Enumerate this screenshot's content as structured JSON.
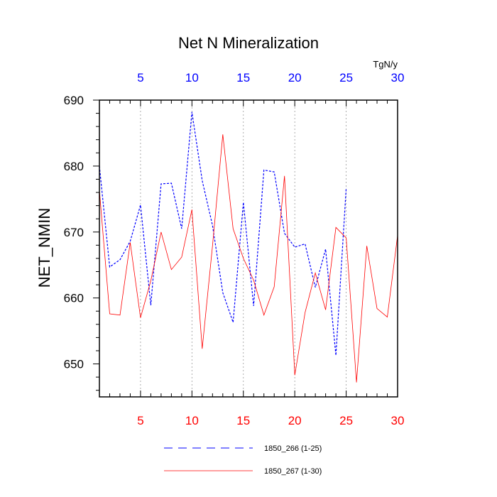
{
  "chart_data": {
    "type": "line",
    "title": "Net N Mineralization",
    "ylabel": "NET_NMIN",
    "units_label": "TgN/y",
    "xlim": [
      1,
      30
    ],
    "ylim": [
      645,
      690
    ],
    "bottom_axis": {
      "ticks": [
        5,
        10,
        15,
        20,
        25,
        30
      ],
      "labels": [
        "5",
        "10",
        "15",
        "20",
        "25",
        "30"
      ],
      "color": "#ff0000"
    },
    "top_axis": {
      "ticks": [
        5,
        10,
        15,
        20,
        25,
        30
      ],
      "labels": [
        "5",
        "10",
        "15",
        "20",
        "25",
        "30"
      ],
      "color": "#0000ff"
    },
    "y_ticks": [
      650,
      660,
      670,
      680,
      690
    ],
    "y_tick_labels": [
      "650",
      "660",
      "670",
      "680",
      "690"
    ],
    "grid": "vertical-dotted",
    "series": [
      {
        "name": "1850_266 (1-25)",
        "color": "#0000ff",
        "style": "dashed",
        "x": [
          1,
          2,
          3,
          4,
          5,
          6,
          7,
          8,
          9,
          10,
          11,
          12,
          13,
          14,
          15,
          16,
          17,
          18,
          19,
          20,
          21,
          22,
          23,
          24,
          25
        ],
        "values": [
          680.0,
          664.7,
          665.8,
          668.6,
          674.1,
          658.9,
          677.3,
          677.4,
          670.5,
          688.2,
          677.8,
          671.0,
          660.8,
          656.3,
          674.5,
          658.8,
          679.4,
          679.1,
          669.8,
          667.7,
          668.2,
          661.6,
          667.4,
          651.3,
          676.7
        ]
      },
      {
        "name": "1850_267 (1-30)",
        "color": "#ff0000",
        "style": "solid",
        "x": [
          1,
          2,
          3,
          4,
          5,
          6,
          7,
          8,
          9,
          10,
          11,
          12,
          13,
          14,
          15,
          16,
          17,
          18,
          19,
          20,
          21,
          22,
          23,
          24,
          25,
          26,
          27,
          28,
          29,
          30
        ],
        "values": [
          676.3,
          657.6,
          657.4,
          668.4,
          657.0,
          662.6,
          670.0,
          664.3,
          666.2,
          673.4,
          652.3,
          667.9,
          684.8,
          670.5,
          666.0,
          662.7,
          657.4,
          661.7,
          678.5,
          648.3,
          657.8,
          663.8,
          658.2,
          670.7,
          669.1,
          647.2,
          667.9,
          658.4,
          657.1,
          669.5
        ]
      }
    ]
  }
}
